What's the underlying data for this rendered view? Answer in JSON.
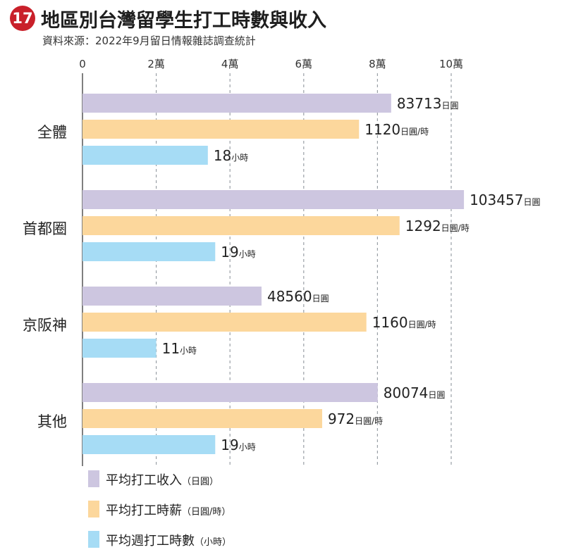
{
  "header": {
    "badge": "17",
    "title": "地區別台灣留學生打工時數與收入",
    "source": "資料來源：2022年9月留日情報雜誌調查統計"
  },
  "chart_data": {
    "type": "bar",
    "orientation": "horizontal",
    "title": "地區別台灣留學生打工時數與收入",
    "source": "資料來源：2022年9月留日情報雜誌調查統計",
    "categories": [
      "全體",
      "首都圈",
      "京阪神",
      "其他"
    ],
    "x_axis": {
      "ticks": [
        "0",
        "2萬",
        "4萬",
        "6萬",
        "8萬",
        "10萬"
      ],
      "tick_values": [
        0,
        20000,
        40000,
        60000,
        80000,
        100000
      ],
      "position": "top",
      "grid": "dashed-vertical"
    },
    "bars_scale_note": "",
    "series": [
      {
        "name": "平均打工收入",
        "unit": "日圓",
        "color": "#cdc6e0",
        "values": [
          83713,
          103457,
          48560,
          80074
        ],
        "bar_scale": [
          83713,
          103457,
          48560,
          80074
        ]
      },
      {
        "name": "平均打工時薪",
        "unit": "日圓/時",
        "color": "#fcd79c",
        "values": [
          1120,
          1292,
          1160,
          972
        ],
        "bar_scale": [
          75000,
          86000,
          77000,
          65000
        ]
      },
      {
        "name": "平均週打工時數",
        "unit": "小時",
        "color": "#a6dcf5",
        "values": [
          18,
          19,
          11,
          19
        ],
        "bar_scale": [
          34000,
          36000,
          20000,
          36000
        ]
      }
    ],
    "legend": [
      {
        "label": "平均打工收入",
        "unit": "（日圓）",
        "color": "#cdc6e0"
      },
      {
        "label": "平均打工時薪",
        "unit": "（日圓/時）",
        "color": "#fcd79c"
      },
      {
        "label": "平均週打工時數",
        "unit": "（小時）",
        "color": "#a6dcf5"
      }
    ],
    "legend_placement": "bottom-left"
  },
  "colors": {
    "badge": "#c9202a",
    "gridline": "#9aa0a6",
    "axis": "#555555"
  }
}
